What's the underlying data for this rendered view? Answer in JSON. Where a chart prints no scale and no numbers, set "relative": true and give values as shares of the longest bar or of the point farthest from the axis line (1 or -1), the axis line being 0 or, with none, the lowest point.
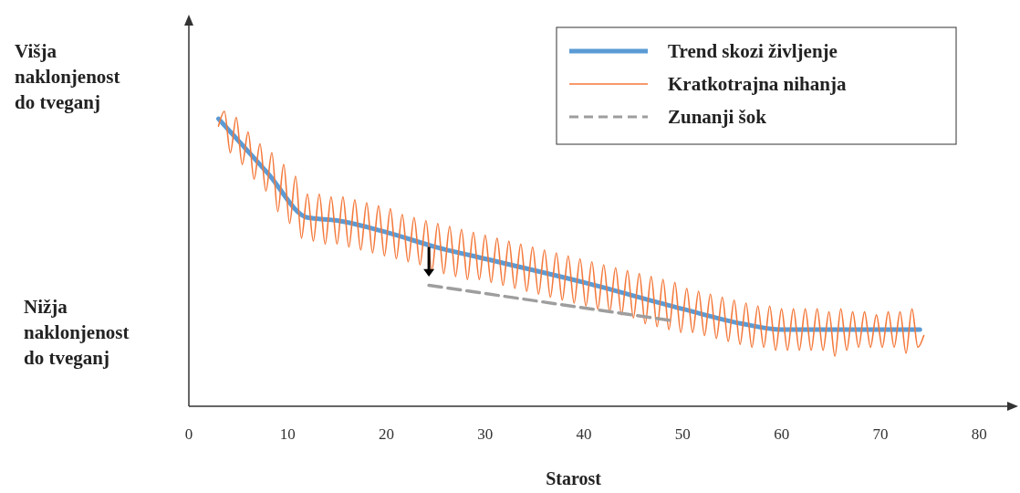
{
  "chart_data": {
    "type": "line",
    "relative": true,
    "xlabel": "Starost",
    "xlim": [
      0,
      83.4
    ],
    "xticks": [
      0,
      10,
      20,
      30,
      40,
      50,
      60,
      70,
      80
    ],
    "grid": false,
    "legend": "top right",
    "marker": "none",
    "annotations": [
      "Višja\nnaklonjenost\ndo tveganj",
      "Nižja\nnaklonjenost\ndo tveganj"
    ],
    "series": [
      {
        "name": "Trend skozi življenje",
        "color": "#5b9bd5",
        "line_style": "solid",
        "x": [
          3,
          8,
          12,
          15,
          20,
          25,
          30,
          40,
          50,
          56,
          60,
          74
        ],
        "values": [
          0.975,
          0.79,
          0.64,
          0.63,
          0.59,
          0.54,
          0.5,
          0.42,
          0.33,
          0.28,
          0.26,
          0.26
        ]
      },
      {
        "name": "Kratkotrajna nihanja",
        "color": "#f4793b",
        "line_style": "solid",
        "x": [
          3.0,
          3.6,
          4.2,
          4.8,
          5.4,
          6.0,
          6.6,
          7.2,
          7.8,
          8.4,
          9.0,
          9.6,
          10.2,
          10.8,
          11.4,
          12.0,
          12.6,
          13.2,
          13.8,
          14.4,
          15.0,
          15.6,
          16.2,
          16.8,
          17.4,
          18.0,
          18.6,
          19.2,
          19.8,
          20.4,
          21.0,
          21.6,
          22.2,
          22.8,
          23.4,
          24.0,
          24.6,
          25.2,
          25.8,
          26.4,
          27.0,
          27.6,
          28.2,
          28.8,
          29.4,
          30.0,
          30.6,
          31.2,
          31.8,
          32.4,
          33.0,
          33.6,
          34.2,
          34.8,
          35.4,
          36.0,
          36.6,
          37.2,
          37.8,
          38.4,
          39.0,
          39.6,
          40.2,
          40.8,
          41.4,
          42.0,
          42.6,
          43.2,
          43.8,
          44.4,
          45.0,
          45.6,
          46.2,
          46.8,
          47.4,
          48.0,
          48.6,
          49.2,
          49.8,
          50.4,
          51.0,
          51.6,
          52.2,
          52.8,
          53.4,
          54.0,
          54.6,
          55.2,
          55.8,
          56.4,
          57.0,
          57.6,
          58.2,
          58.8,
          59.4,
          60.0,
          60.6,
          61.2,
          61.8,
          62.4,
          63.0,
          63.6,
          64.2,
          64.8,
          65.4,
          66.0,
          66.6,
          67.2,
          67.8,
          68.4,
          69.0,
          69.6,
          70.2,
          70.8,
          71.4,
          72.0,
          72.6,
          73.2,
          73.8,
          74.4
        ],
        "values": [
          0.95,
          1.0,
          0.86,
          0.98,
          0.82,
          0.93,
          0.77,
          0.89,
          0.73,
          0.86,
          0.66,
          0.82,
          0.62,
          0.78,
          0.57,
          0.72,
          0.56,
          0.72,
          0.55,
          0.71,
          0.55,
          0.71,
          0.54,
          0.7,
          0.53,
          0.69,
          0.52,
          0.68,
          0.51,
          0.67,
          0.5,
          0.65,
          0.49,
          0.64,
          0.48,
          0.63,
          0.46,
          0.62,
          0.45,
          0.61,
          0.44,
          0.6,
          0.43,
          0.59,
          0.43,
          0.58,
          0.42,
          0.57,
          0.41,
          0.56,
          0.4,
          0.55,
          0.39,
          0.54,
          0.38,
          0.53,
          0.37,
          0.52,
          0.36,
          0.51,
          0.35,
          0.5,
          0.34,
          0.49,
          0.33,
          0.48,
          0.32,
          0.47,
          0.31,
          0.46,
          0.3,
          0.45,
          0.28,
          0.44,
          0.27,
          0.43,
          0.26,
          0.42,
          0.25,
          0.4,
          0.25,
          0.39,
          0.24,
          0.38,
          0.23,
          0.37,
          0.22,
          0.36,
          0.21,
          0.35,
          0.2,
          0.34,
          0.2,
          0.34,
          0.19,
          0.33,
          0.19,
          0.33,
          0.19,
          0.33,
          0.19,
          0.33,
          0.19,
          0.32,
          0.17,
          0.33,
          0.19,
          0.32,
          0.2,
          0.32,
          0.2,
          0.31,
          0.2,
          0.32,
          0.2,
          0.32,
          0.18,
          0.33,
          0.2,
          0.24
        ]
      },
      {
        "name": "Zunanji šok",
        "color": "#9e9e9e",
        "line_style": "dashed",
        "x": [
          24.3,
          49
        ],
        "values": [
          0.41,
          0.29
        ]
      }
    ]
  }
}
